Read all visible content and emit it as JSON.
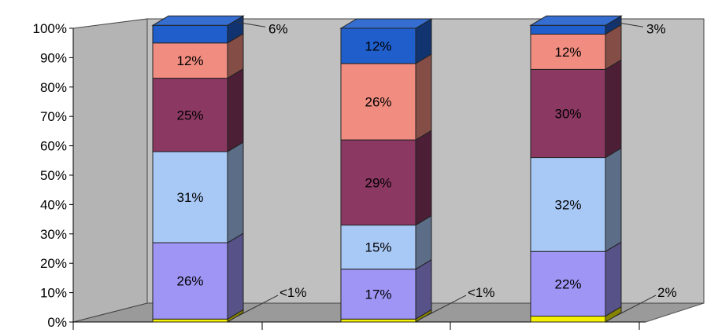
{
  "chart_data": {
    "type": "bar",
    "stacked": true,
    "percent_stacked": true,
    "three_d": true,
    "categories": [
      "",
      "",
      ""
    ],
    "y_ticks": [
      "0%",
      "10%",
      "20%",
      "30%",
      "40%",
      "50%",
      "60%",
      "70%",
      "80%",
      "90%",
      "100%"
    ],
    "ylim": [
      0,
      100
    ],
    "series": [
      {
        "values": [
          1,
          1,
          2
        ],
        "labels": [
          "<1%",
          "<1%",
          "2%"
        ],
        "color": "#f5f000"
      },
      {
        "values": [
          26,
          17,
          22
        ],
        "labels": [
          "26%",
          "17%",
          "22%"
        ],
        "color": "#9e95f5"
      },
      {
        "values": [
          31,
          15,
          32
        ],
        "labels": [
          "31%",
          "15%",
          "32%"
        ],
        "color": "#a8c8f5"
      },
      {
        "values": [
          25,
          29,
          30
        ],
        "labels": [
          "25%",
          "29%",
          "30%"
        ],
        "color": "#8b3862"
      },
      {
        "values": [
          12,
          26,
          12
        ],
        "labels": [
          "12%",
          "26%",
          "12%"
        ],
        "color": "#f08c80"
      },
      {
        "values": [
          6,
          12,
          3
        ],
        "labels": [
          "6%",
          "12%",
          "3%"
        ],
        "color": "#1f5ecb"
      }
    ],
    "title": "",
    "xlabel": "",
    "ylabel": "",
    "grid": false,
    "legend": false,
    "wall_color": "#c0c0c0"
  }
}
